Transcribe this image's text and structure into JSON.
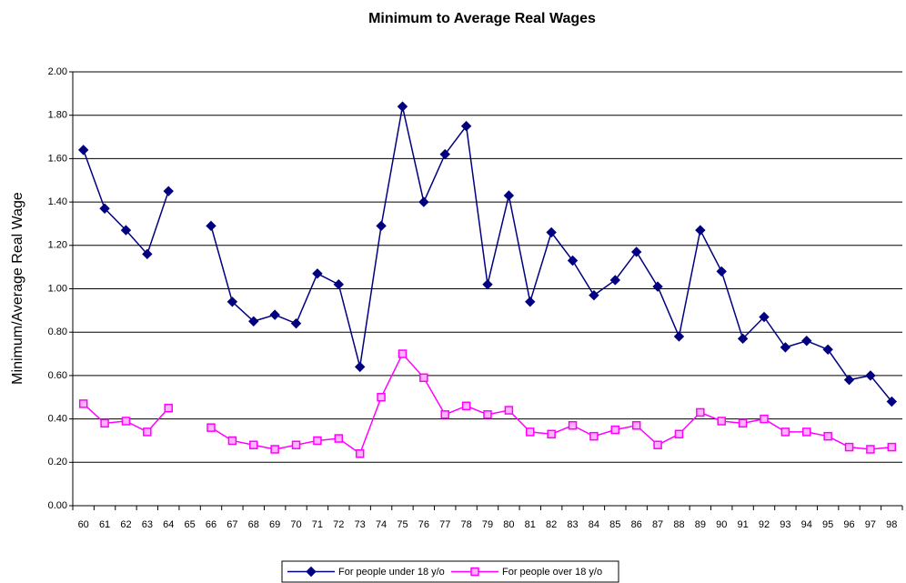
{
  "chart_data": {
    "type": "line",
    "title": "Minimum to Average Real Wages",
    "y_label": "Minimum/Average Real Wage",
    "categories": [
      "60",
      "61",
      "62",
      "63",
      "64",
      "65",
      "66",
      "67",
      "68",
      "69",
      "70",
      "71",
      "72",
      "73",
      "74",
      "75",
      "76",
      "77",
      "78",
      "79",
      "80",
      "81",
      "82",
      "83",
      "84",
      "85",
      "86",
      "87",
      "88",
      "89",
      "90",
      "91",
      "92",
      "93",
      "94",
      "95",
      "96",
      "97",
      "98"
    ],
    "series": [
      {
        "name": "For people under 18 y/o",
        "color": "#000080",
        "marker": "diamond",
        "values": [
          1.64,
          1.37,
          1.27,
          1.16,
          1.45,
          null,
          1.29,
          0.94,
          0.85,
          0.88,
          0.84,
          1.07,
          1.02,
          0.64,
          1.29,
          1.84,
          1.4,
          1.62,
          1.75,
          1.02,
          1.43,
          0.94,
          1.26,
          1.13,
          0.97,
          1.04,
          1.17,
          1.01,
          0.78,
          1.27,
          1.08,
          0.77,
          0.87,
          0.73,
          0.76,
          0.72,
          0.58,
          0.6,
          0.48
        ]
      },
      {
        "name": "For people over 18 y/o",
        "color": "#ff00ff",
        "marker": "square",
        "values": [
          0.47,
          0.38,
          0.39,
          0.34,
          0.45,
          null,
          0.36,
          0.3,
          0.28,
          0.26,
          0.28,
          0.3,
          0.31,
          0.24,
          0.5,
          0.7,
          0.59,
          0.42,
          0.46,
          0.42,
          0.44,
          0.34,
          0.33,
          0.37,
          0.32,
          0.35,
          0.37,
          0.28,
          0.33,
          0.43,
          0.39,
          0.38,
          0.4,
          0.34,
          0.34,
          0.32,
          0.27,
          0.26,
          0.27
        ]
      }
    ],
    "ylim": [
      0,
      2
    ],
    "yticks": [
      {
        "value": 0,
        "label": "0.00"
      },
      {
        "value": 0.2,
        "label": "0.20"
      },
      {
        "value": 0.4,
        "label": "0.40"
      },
      {
        "value": 0.6,
        "label": "0.60"
      },
      {
        "value": 0.8,
        "label": "0.80"
      },
      {
        "value": 1,
        "label": "1.00"
      },
      {
        "value": 1.2,
        "label": "1.20"
      },
      {
        "value": 1.4,
        "label": "1.40"
      },
      {
        "value": 1.6,
        "label": "1.60"
      },
      {
        "value": 1.8,
        "label": "1.80"
      },
      {
        "value": 2,
        "label": "2.00"
      }
    ],
    "grid": true,
    "legend": "bottom"
  }
}
